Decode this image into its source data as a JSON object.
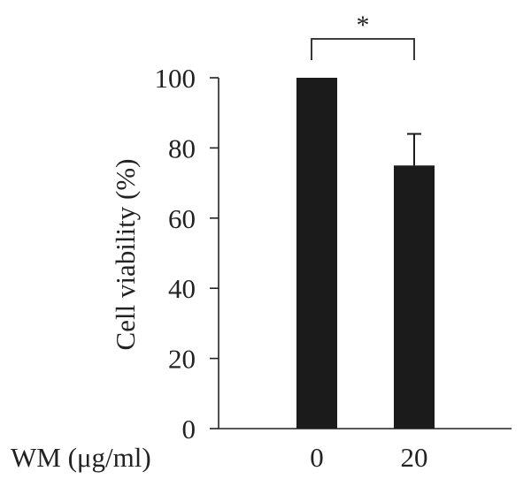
{
  "chart_data": {
    "type": "bar",
    "title": "",
    "xlabel": "WM (μg/ml)",
    "ylabel": "Cell viability (%)",
    "categories": [
      "0",
      "20"
    ],
    "values": [
      100,
      75
    ],
    "error": [
      0,
      9
    ],
    "ylim": [
      0,
      100
    ],
    "yticks": [
      "0",
      "20",
      "40",
      "60",
      "80",
      "100"
    ],
    "bar_color": "#1b1b1b",
    "grid": false,
    "significance": {
      "label": "*",
      "between": [
        "0",
        "20"
      ]
    }
  }
}
